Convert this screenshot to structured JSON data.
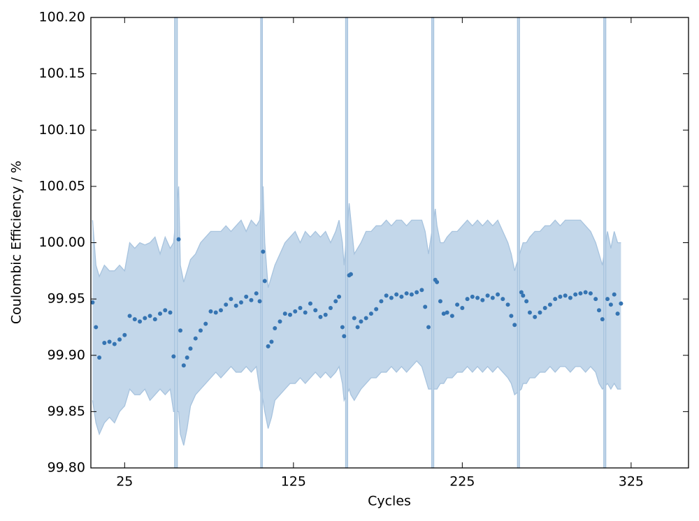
{
  "chart_data": {
    "type": "scatter",
    "xlabel": "Cycles",
    "ylabel": "Coulombic Efficiency / %",
    "xlim": [
      5,
      359
    ],
    "ylim": [
      99.8,
      100.2
    ],
    "xticks": [
      25,
      125,
      225,
      325
    ],
    "yticks": [
      {
        "value": 99.8,
        "label": "99.80"
      },
      99.85,
      {
        "value": 99.9,
        "label": "99.90"
      },
      99.95,
      {
        "value": 100.0,
        "label": "100.00"
      },
      100.05,
      {
        "value": 100.1,
        "label": "100.10"
      },
      100.15,
      {
        "value": 100.2,
        "label": "100.20"
      }
    ],
    "x": [
      6,
      8,
      10,
      13,
      16,
      19,
      22,
      25,
      28,
      31,
      34,
      37,
      40,
      43,
      46,
      49,
      52,
      54,
      57,
      58,
      60,
      62,
      64,
      67,
      70,
      73,
      76,
      79,
      82,
      85,
      88,
      91,
      94,
      97,
      100,
      103,
      105,
      107,
      108,
      110,
      112,
      114,
      117,
      120,
      123,
      126,
      129,
      132,
      135,
      138,
      141,
      144,
      147,
      150,
      152,
      154,
      155,
      158,
      159,
      161,
      163,
      165,
      168,
      171,
      174,
      177,
      180,
      183,
      186,
      189,
      192,
      195,
      198,
      201,
      203,
      205,
      209,
      210,
      212,
      214,
      216,
      219,
      222,
      225,
      228,
      231,
      234,
      237,
      240,
      243,
      246,
      249,
      252,
      254,
      256,
      260,
      261,
      263,
      265,
      268,
      271,
      274,
      277,
      280,
      283,
      286,
      289,
      292,
      295,
      298,
      301,
      304,
      306,
      308,
      311,
      313,
      315,
      317,
      319
    ],
    "series": [
      {
        "color": "#3574b2",
        "values": [
          99.947,
          99.925,
          99.898,
          99.911,
          99.912,
          99.91,
          99.914,
          99.918,
          99.935,
          99.932,
          99.93,
          99.933,
          99.935,
          99.932,
          99.937,
          99.94,
          99.938,
          99.899,
          100.003,
          99.922,
          99.891,
          99.898,
          99.906,
          99.915,
          99.922,
          99.928,
          99.939,
          99.938,
          99.94,
          99.945,
          99.95,
          99.944,
          99.947,
          99.952,
          99.949,
          99.955,
          99.948,
          99.992,
          99.966,
          99.908,
          99.912,
          99.924,
          99.93,
          99.937,
          99.936,
          99.939,
          99.942,
          99.938,
          99.946,
          99.94,
          99.934,
          99.936,
          99.942,
          99.948,
          99.952,
          99.925,
          99.917,
          99.971,
          99.972,
          99.933,
          99.925,
          99.93,
          99.933,
          99.937,
          99.941,
          99.948,
          99.953,
          99.951,
          99.954,
          99.952,
          99.955,
          99.954,
          99.956,
          99.958,
          99.943,
          99.925,
          99.967,
          99.965,
          99.948,
          99.937,
          99.938,
          99.935,
          99.945,
          99.942,
          99.95,
          99.952,
          99.951,
          99.949,
          99.953,
          99.951,
          99.954,
          99.95,
          99.945,
          99.935,
          99.927,
          99.956,
          99.953,
          99.948,
          99.938,
          99.934,
          99.938,
          99.942,
          99.945,
          99.95,
          99.952,
          99.953,
          99.951,
          99.954,
          99.955,
          99.956,
          99.955,
          99.95,
          99.94,
          99.932,
          99.95,
          99.945,
          99.954,
          99.937,
          99.946
        ]
      }
    ],
    "band": {
      "color": "#c3d7ea",
      "edge": "#a7c3de",
      "upper": [
        100.02,
        99.98,
        99.97,
        99.98,
        99.975,
        99.975,
        99.98,
        99.975,
        100.0,
        99.995,
        100.0,
        99.998,
        100.0,
        100.005,
        99.99,
        100.005,
        99.995,
        100.0,
        100.05,
        99.98,
        99.965,
        99.975,
        99.985,
        99.99,
        100.0,
        100.005,
        100.01,
        100.01,
        100.01,
        100.015,
        100.01,
        100.015,
        100.02,
        100.01,
        100.02,
        100.015,
        100.02,
        100.05,
        100.0,
        99.96,
        99.97,
        99.98,
        99.99,
        100.0,
        100.005,
        100.01,
        100.0,
        100.01,
        100.005,
        100.01,
        100.005,
        100.01,
        100.0,
        100.01,
        100.02,
        100.0,
        99.98,
        100.035,
        100.02,
        99.99,
        99.995,
        100.0,
        100.01,
        100.01,
        100.015,
        100.015,
        100.02,
        100.015,
        100.02,
        100.02,
        100.015,
        100.02,
        100.02,
        100.02,
        100.01,
        99.99,
        100.03,
        100.015,
        100.0,
        100.0,
        100.005,
        100.01,
        100.01,
        100.015,
        100.02,
        100.015,
        100.02,
        100.015,
        100.02,
        100.015,
        100.02,
        100.01,
        100.0,
        99.99,
        99.975,
        99.995,
        100.0,
        100.0,
        100.005,
        100.01,
        100.01,
        100.015,
        100.015,
        100.02,
        100.015,
        100.02,
        100.02,
        100.02,
        100.02,
        100.015,
        100.01,
        100.0,
        99.99,
        99.98,
        100.01,
        99.995,
        100.01,
        100.0,
        100.0
      ],
      "lower": [
        99.86,
        99.84,
        99.83,
        99.84,
        99.845,
        99.84,
        99.85,
        99.855,
        99.87,
        99.865,
        99.865,
        99.87,
        99.86,
        99.865,
        99.87,
        99.865,
        99.87,
        99.85,
        99.85,
        99.83,
        99.82,
        99.835,
        99.855,
        99.865,
        99.87,
        99.875,
        99.88,
        99.885,
        99.88,
        99.885,
        99.89,
        99.885,
        99.885,
        99.89,
        99.885,
        99.89,
        99.87,
        99.86,
        99.85,
        99.835,
        99.845,
        99.86,
        99.865,
        99.87,
        99.875,
        99.875,
        99.88,
        99.875,
        99.88,
        99.885,
        99.88,
        99.885,
        99.88,
        99.885,
        99.89,
        99.875,
        99.86,
        99.87,
        99.865,
        99.86,
        99.865,
        99.87,
        99.875,
        99.88,
        99.88,
        99.885,
        99.885,
        99.89,
        99.885,
        99.89,
        99.885,
        99.89,
        99.895,
        99.89,
        99.88,
        99.87,
        99.87,
        99.87,
        99.875,
        99.875,
        99.88,
        99.88,
        99.885,
        99.885,
        99.89,
        99.885,
        99.89,
        99.885,
        99.89,
        99.885,
        99.89,
        99.885,
        99.88,
        99.875,
        99.865,
        99.87,
        99.875,
        99.875,
        99.88,
        99.88,
        99.885,
        99.885,
        99.89,
        99.885,
        99.89,
        99.89,
        99.885,
        99.89,
        99.89,
        99.885,
        99.89,
        99.885,
        99.875,
        99.87,
        99.875,
        99.87,
        99.875,
        99.87,
        99.87
      ]
    },
    "spikes": [
      [
        54.6,
        56.2
      ],
      [
        105.6,
        106.6
      ],
      [
        155.9,
        157.1
      ],
      [
        206.9,
        208.1
      ],
      [
        257.7,
        258.9
      ],
      [
        308.8,
        310.0
      ]
    ]
  }
}
